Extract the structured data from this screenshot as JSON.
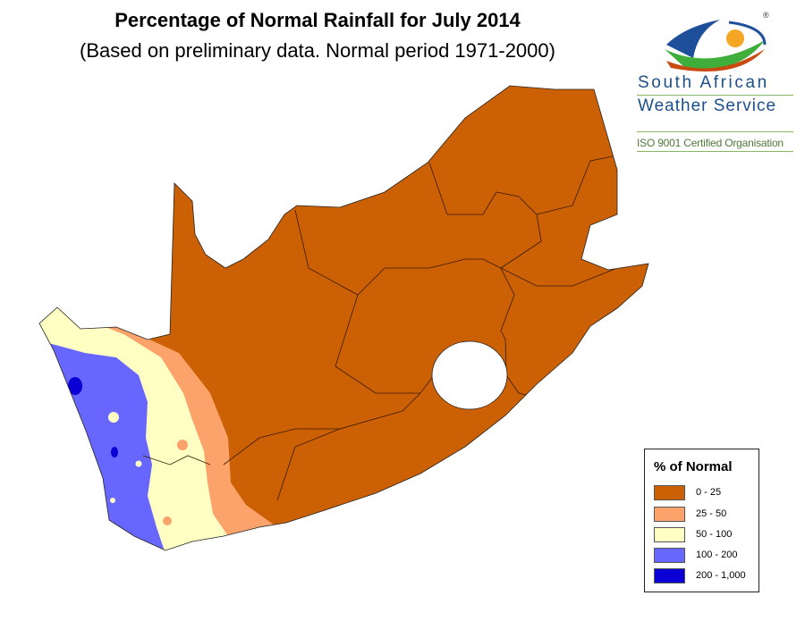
{
  "title": "Percentage of Normal Rainfall for July  2014",
  "subtitle": "(Based on preliminary data. Normal period 1971-2000)",
  "logo": {
    "line1": "South  African",
    "line2": "Weather Service",
    "tagline": "ISO 9001 Certified Organisation",
    "registered": "®"
  },
  "legend": {
    "title": "% of Normal",
    "items": [
      {
        "label": "0 - 25",
        "color": "#cc6004"
      },
      {
        "label": "25 - 50",
        "color": "#fba36a"
      },
      {
        "label": "50 - 100",
        "color": "#ffffc4"
      },
      {
        "label": "100 - 200",
        "color": "#6767ff"
      },
      {
        "label": "200 - 1,000",
        "color": "#0a00d6"
      }
    ]
  }
}
